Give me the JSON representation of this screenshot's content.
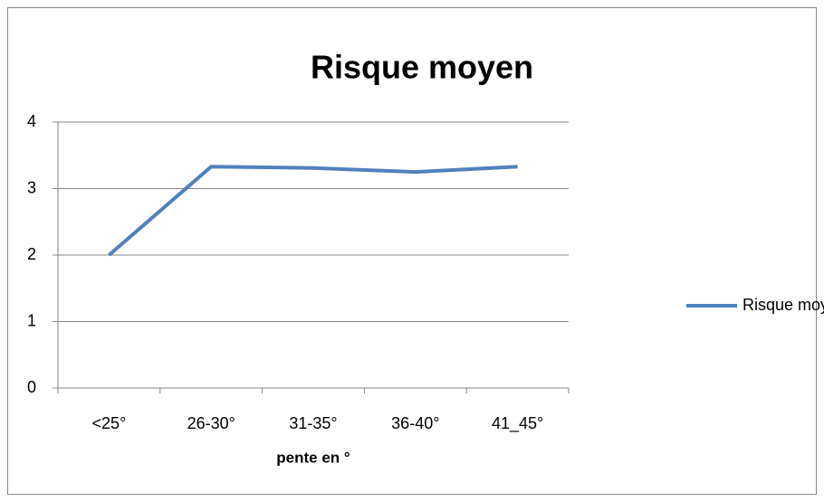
{
  "chart_data": {
    "type": "line",
    "title": "Risque moyen",
    "x_label": "pente en °",
    "categories": [
      "<25°",
      "26-30°",
      "31-35°",
      "36-40°",
      "41_45°"
    ],
    "series": [
      {
        "name": "Risque moyen",
        "color": "#4f81bd",
        "values": [
          2,
          3.33,
          3.31,
          3.25,
          3.33
        ]
      }
    ],
    "ylim": [
      0,
      4
    ],
    "yticks": [
      0,
      1,
      2,
      3,
      4
    ],
    "grid": true,
    "legend": "right"
  }
}
